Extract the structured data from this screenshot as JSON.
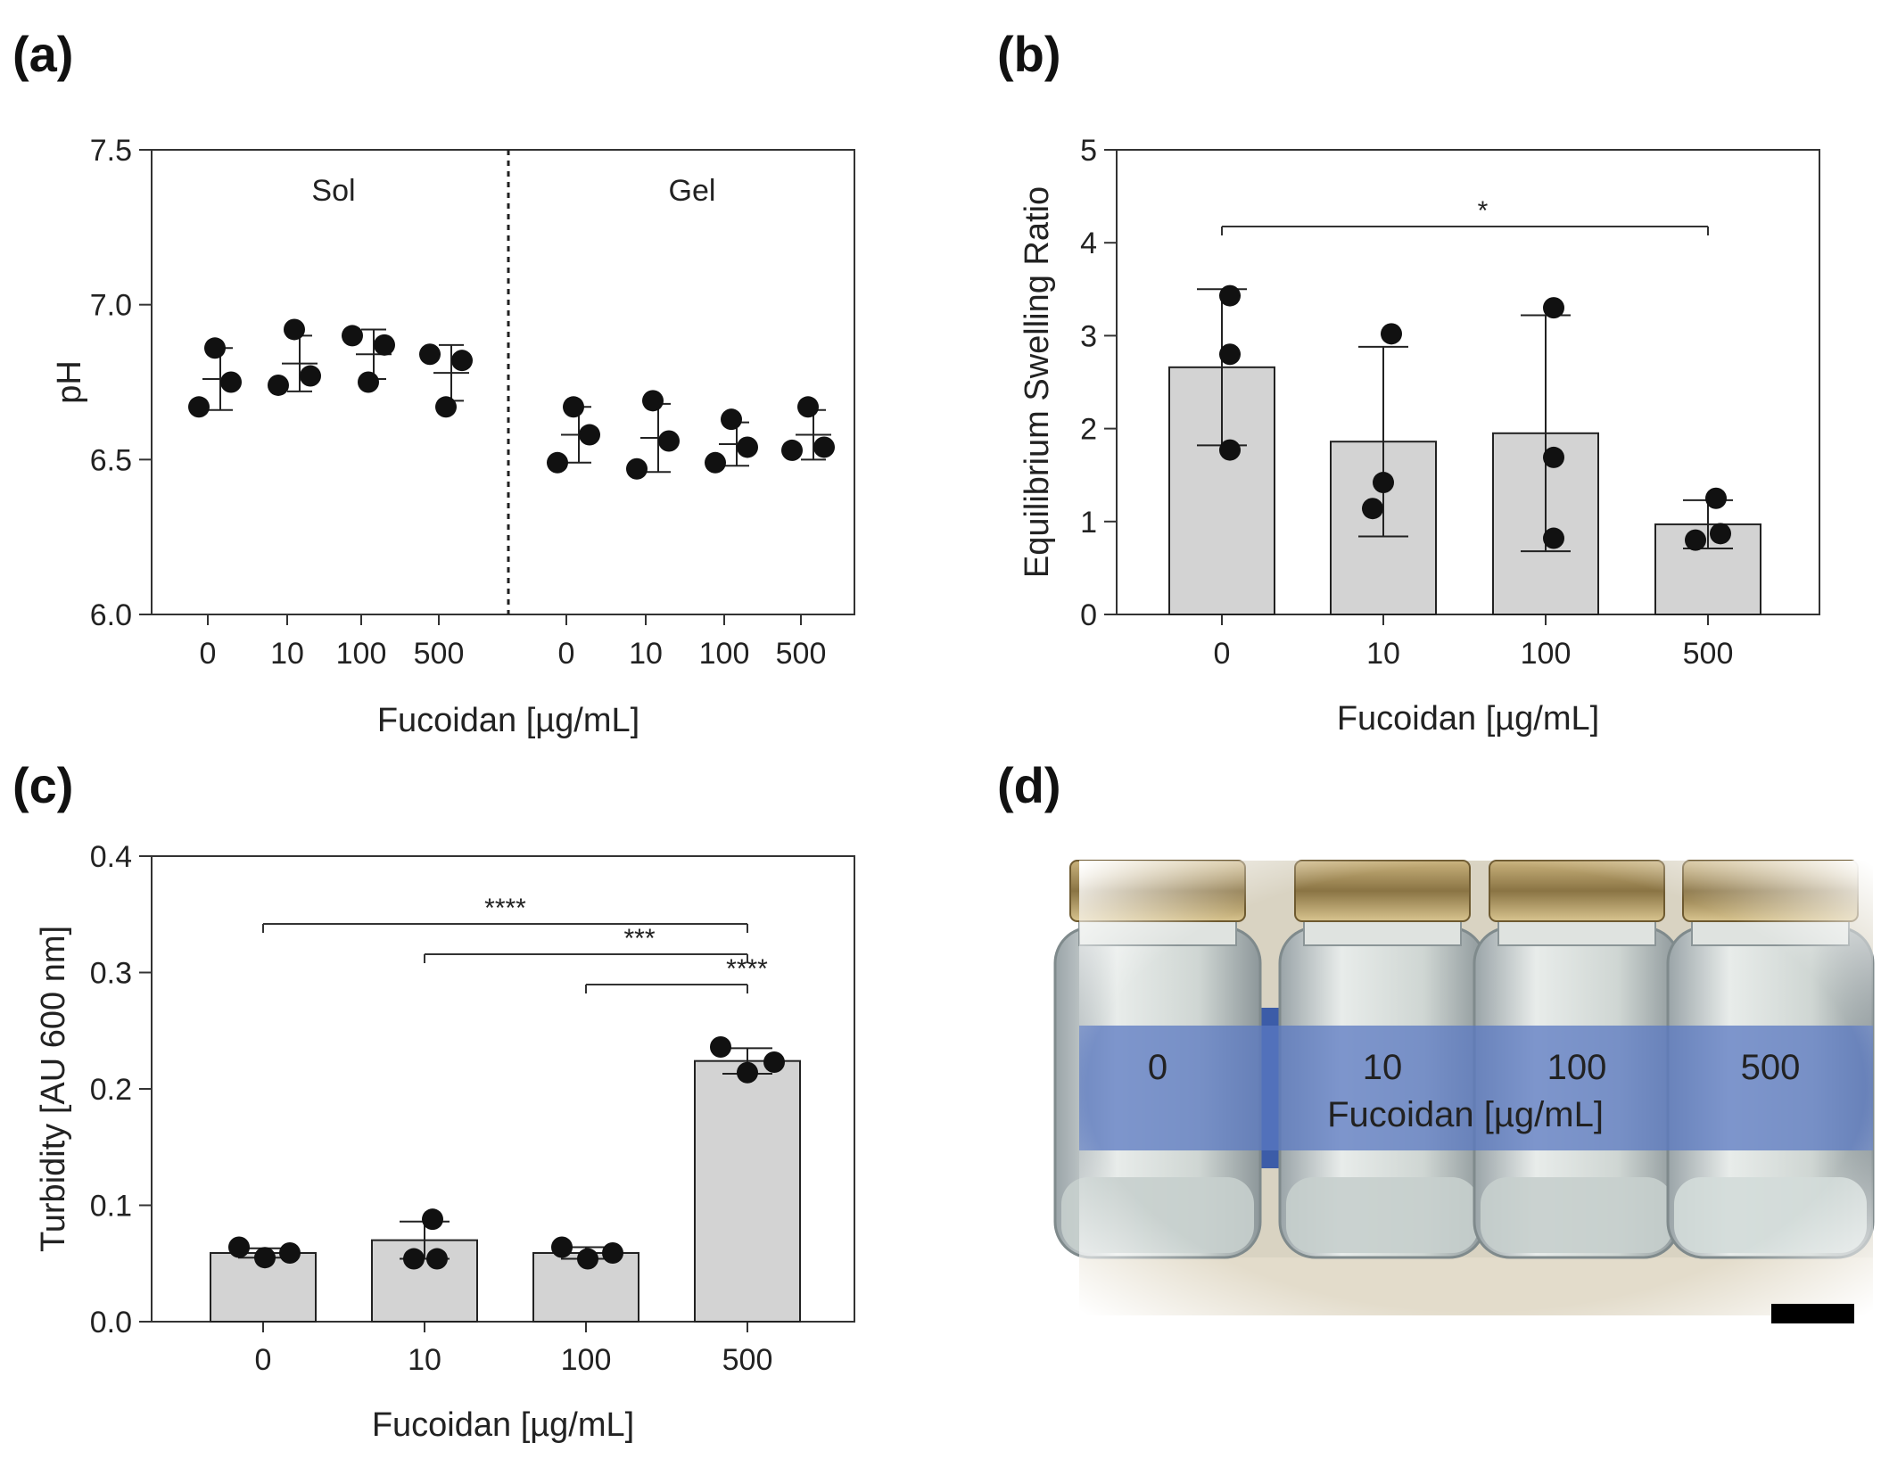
{
  "panel_labels": {
    "a": "(a)",
    "b": "(b)",
    "c": "(c)",
    "d": "(d)"
  },
  "chart_data": [
    {
      "panel": "a",
      "type": "scatter",
      "ylabel": "pH",
      "xlabel": "Fucoidan [µg/mL]",
      "ylim": [
        6.0,
        7.5
      ],
      "yticks": [
        "6.0",
        "6.5",
        "7.0",
        "7.5"
      ],
      "ytick_values": [
        6.0,
        6.5,
        7.0,
        7.5
      ],
      "group_labels": [
        "Sol",
        "Gel"
      ],
      "categories": [
        "0",
        "10",
        "100",
        "500",
        "0",
        "10",
        "100",
        "500"
      ],
      "points": [
        [
          6.67,
          6.86,
          6.75
        ],
        [
          6.74,
          6.92,
          6.77
        ],
        [
          6.9,
          6.75,
          6.87
        ],
        [
          6.84,
          6.67,
          6.82
        ],
        [
          6.49,
          6.67,
          6.58
        ],
        [
          6.47,
          6.69,
          6.56
        ],
        [
          6.49,
          6.63,
          6.54
        ],
        [
          6.53,
          6.67,
          6.54
        ]
      ],
      "means": [
        6.76,
        6.81,
        6.84,
        6.78,
        6.58,
        6.57,
        6.55,
        6.58
      ],
      "sd": [
        0.1,
        0.09,
        0.08,
        0.09,
        0.09,
        0.11,
        0.07,
        0.08
      ]
    },
    {
      "panel": "b",
      "type": "bar",
      "ylabel": "Equilibrium Swelling Ratio",
      "xlabel": "Fucoidan [µg/mL]",
      "ylim": [
        0,
        5
      ],
      "yticks": [
        "0",
        "1",
        "2",
        "3",
        "4",
        "5"
      ],
      "ytick_values": [
        0,
        1,
        2,
        3,
        4,
        5
      ],
      "categories": [
        "0",
        "10",
        "100",
        "500"
      ],
      "values": [
        2.66,
        1.86,
        1.95,
        0.97
      ],
      "sd": [
        0.84,
        1.02,
        1.27,
        0.26
      ],
      "points": [
        [
          3.43,
          2.8,
          1.77
        ],
        [
          3.02,
          1.14,
          1.42
        ],
        [
          3.3,
          1.69,
          0.82
        ],
        [
          1.25,
          0.8,
          0.87
        ]
      ],
      "significance": [
        {
          "from": 0,
          "to": 3,
          "label": "*"
        }
      ]
    },
    {
      "panel": "c",
      "type": "bar",
      "ylabel": "Turbidity [AU 600 nm]",
      "xlabel": "Fucoidan [µg/mL]",
      "ylim": [
        0.0,
        0.4
      ],
      "yticks": [
        "0.0",
        "0.1",
        "0.2",
        "0.3",
        "0.4"
      ],
      "ytick_values": [
        0.0,
        0.1,
        0.2,
        0.3,
        0.4
      ],
      "categories": [
        "0",
        "10",
        "100",
        "500"
      ],
      "values": [
        0.059,
        0.07,
        0.059,
        0.224
      ],
      "sd": [
        0.004,
        0.016,
        0.005,
        0.011
      ],
      "points": [
        [
          0.064,
          0.055,
          0.059
        ],
        [
          0.088,
          0.054,
          0.054
        ],
        [
          0.064,
          0.054,
          0.059
        ],
        [
          0.236,
          0.214,
          0.223
        ]
      ],
      "significance": [
        {
          "from": 0,
          "to": 3,
          "label": "****"
        },
        {
          "from": 1,
          "to": 3,
          "label": "***"
        },
        {
          "from": 2,
          "to": 3,
          "label": "****"
        }
      ]
    }
  ],
  "photo": {
    "labels": [
      "0",
      "10",
      "100",
      "500"
    ],
    "caption": "Fucoidan [µg/mL]"
  },
  "colors": {
    "bar_fill": "#d3d3d3",
    "bar_stroke": "#222222",
    "point": "#111111",
    "blue_band": "#4466b3"
  }
}
